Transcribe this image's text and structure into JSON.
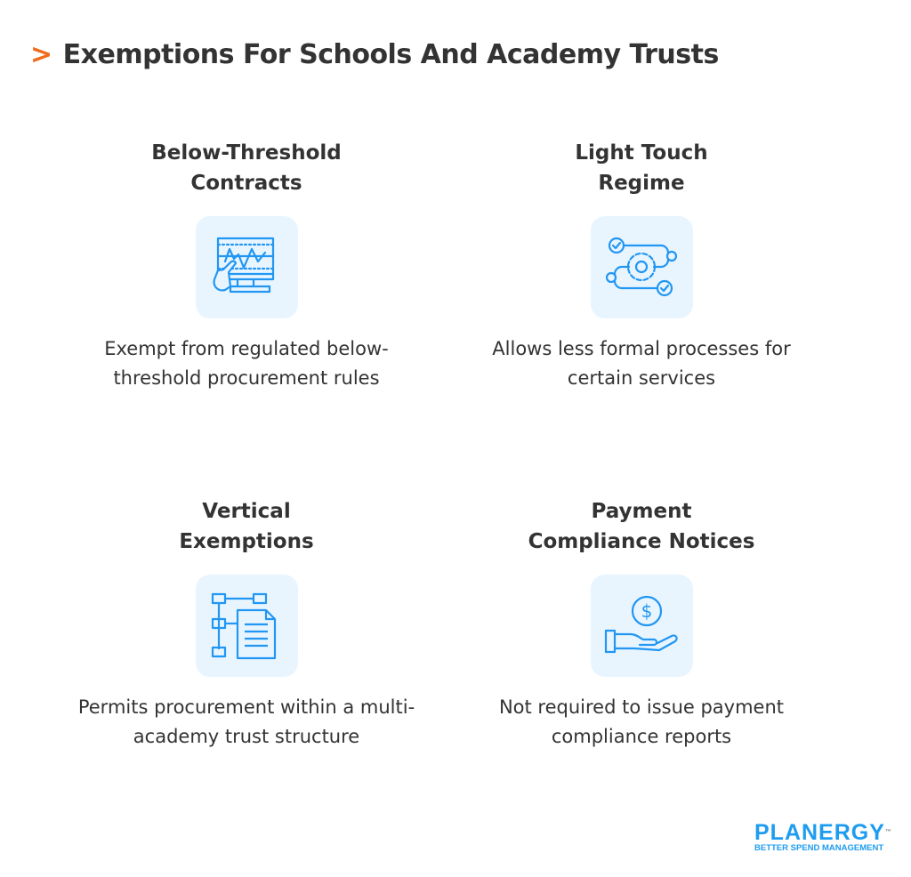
{
  "title": {
    "prefix": ">",
    "text": "Exemptions For Schools And Academy Trusts"
  },
  "accent_color": "#f26a1b",
  "icon_color": "#2196f3",
  "cards": [
    {
      "heading_lines": [
        "Below-Threshold",
        "Contracts"
      ],
      "icon": "monitor-chart-hand-icon",
      "body": "Exempt from regulated below-threshold procurement rules"
    },
    {
      "heading_lines": [
        "Light Touch",
        "Regime"
      ],
      "icon": "gear-workflow-icon",
      "body": "Allows less formal processes for certain services"
    },
    {
      "heading_lines": [
        "Vertical",
        "Exemptions"
      ],
      "icon": "flowchart-document-icon",
      "body": "Permits procurement within a multi-academy trust structure"
    },
    {
      "heading_lines": [
        "Payment",
        "Compliance Notices"
      ],
      "icon": "hand-dollar-icon",
      "body": "Not required to issue payment compliance reports"
    }
  ],
  "logo": {
    "name": "PLANERGY",
    "tm": "™",
    "tagline": "BETTER SPEND MANAGEMENT"
  }
}
